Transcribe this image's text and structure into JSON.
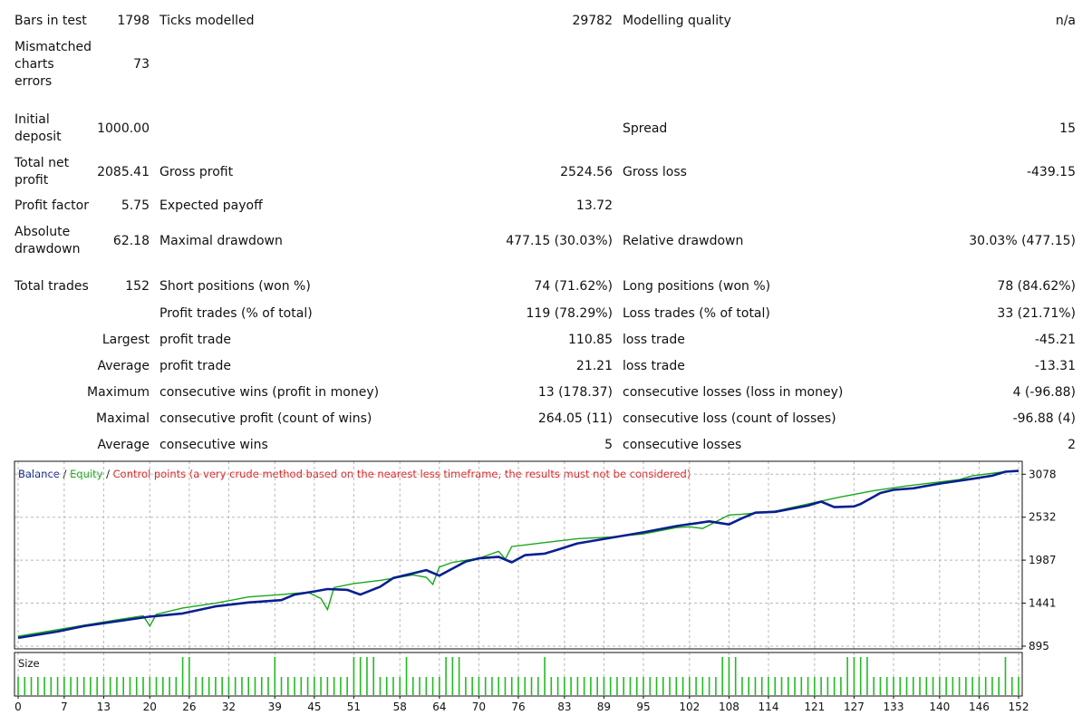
{
  "report": {
    "bars_in_test": {
      "label": "Bars in test",
      "value": "1798"
    },
    "ticks_modelled": {
      "label": "Ticks modelled",
      "value": "29782"
    },
    "modelling_quality": {
      "label": "Modelling quality",
      "value": "n/a"
    },
    "mismatched": {
      "label_lines": [
        "Mismatched",
        "charts",
        "errors"
      ],
      "value": "73"
    },
    "initial_deposit": {
      "label_lines": [
        "Initial",
        "deposit"
      ],
      "value": "1000.00"
    },
    "spread": {
      "label": "Spread",
      "value": "15"
    },
    "total_net_profit": {
      "label_lines": [
        "Total net",
        "profit"
      ],
      "value": "2085.41"
    },
    "gross_profit": {
      "label": "Gross profit",
      "value": "2524.56"
    },
    "gross_loss": {
      "label": "Gross loss",
      "value": "-439.15"
    },
    "profit_factor": {
      "label": "Profit factor",
      "value": "5.75"
    },
    "expected_payoff": {
      "label": "Expected payoff",
      "value": "13.72"
    },
    "absolute_drawdown": {
      "label_lines": [
        "Absolute",
        "drawdown"
      ],
      "value": "62.18"
    },
    "maximal_drawdown": {
      "label": "Maximal drawdown",
      "value": "477.15 (30.03%)"
    },
    "relative_drawdown": {
      "label": "Relative drawdown",
      "value": "30.03% (477.15)"
    },
    "total_trades": {
      "label": "Total trades",
      "value": "152"
    },
    "short_positions": {
      "label": "Short positions (won %)",
      "value": "74 (71.62%)"
    },
    "long_positions": {
      "label": "Long positions (won %)",
      "value": "78 (84.62%)"
    },
    "profit_trades": {
      "label": "Profit trades (% of total)",
      "value": "119 (78.29%)"
    },
    "loss_trades": {
      "label": "Loss trades (% of total)",
      "value": "33 (21.71%)"
    },
    "largest": {
      "prefix": "Largest",
      "profit_label": "profit trade",
      "profit_value": "110.85",
      "loss_label": "loss trade",
      "loss_value": "-45.21"
    },
    "average": {
      "prefix": "Average",
      "profit_label": "profit trade",
      "profit_value": "21.21",
      "loss_label": "loss trade",
      "loss_value": "-13.31"
    },
    "maximum": {
      "prefix": "Maximum",
      "wins_label": "consecutive wins (profit in money)",
      "wins_value": "13 (178.37)",
      "losses_label": "consecutive losses (loss in money)",
      "losses_value": "4 (-96.88)"
    },
    "maximal": {
      "prefix": "Maximal",
      "profit_label": "consecutive profit (count of wins)",
      "profit_value": "264.05 (11)",
      "loss_label": "consecutive loss (count of losses)",
      "loss_value": "-96.88 (4)"
    },
    "average_consecutive": {
      "prefix": "Average",
      "wins_label": "consecutive wins",
      "wins_value": "5",
      "losses_label": "consecutive losses",
      "losses_value": "2"
    }
  },
  "colors": {
    "balance": "#0a1f8f",
    "equity": "#18a818",
    "control": "#e02020",
    "size": "#22bb22",
    "grid": "#b8b8b8"
  },
  "chart_data": {
    "type": "line",
    "legend": {
      "balance": "Balance",
      "sep1": " / ",
      "equity": "Equity",
      "sep2": " / ",
      "control": "Control points (a very crude method based on the nearest less timeframe, the results must not be considered)"
    },
    "ylim": [
      895,
      3208
    ],
    "y_ticks": [
      3078,
      2532,
      1987,
      1441,
      895
    ],
    "xlim": [
      0,
      152
    ],
    "x_ticks": [
      0,
      7,
      13,
      20,
      26,
      32,
      39,
      45,
      51,
      58,
      64,
      70,
      76,
      83,
      89,
      95,
      102,
      108,
      114,
      121,
      127,
      133,
      140,
      146,
      152
    ],
    "series": [
      {
        "name": "Balance",
        "x": [
          0,
          6,
          10,
          15,
          20,
          25,
          30,
          35,
          40,
          42,
          45,
          47,
          50,
          52,
          55,
          57,
          60,
          62,
          64,
          66,
          68,
          70,
          73,
          75,
          77,
          80,
          82,
          85,
          90,
          95,
          100,
          105,
          108,
          110,
          112,
          115,
          120,
          122,
          124,
          127,
          128,
          131,
          133,
          136,
          140,
          145,
          148,
          150,
          152
        ],
        "values": [
          1000,
          1080,
          1150,
          1210,
          1270,
          1310,
          1400,
          1450,
          1480,
          1550,
          1590,
          1620,
          1610,
          1550,
          1650,
          1760,
          1820,
          1860,
          1790,
          1880,
          1970,
          2010,
          2030,
          1960,
          2050,
          2070,
          2120,
          2200,
          2270,
          2340,
          2420,
          2480,
          2440,
          2520,
          2590,
          2600,
          2680,
          2730,
          2660,
          2670,
          2700,
          2840,
          2880,
          2900,
          2960,
          3020,
          3060,
          3110,
          3120
        ]
      },
      {
        "name": "Equity",
        "x": [
          0,
          10,
          15,
          19,
          20,
          21,
          25,
          30,
          35,
          40,
          44,
          46,
          47,
          48,
          51,
          55,
          60,
          62,
          63,
          64,
          66,
          70,
          73,
          74,
          75,
          80,
          85,
          90,
          95,
          100,
          102,
          104,
          108,
          110,
          115,
          120,
          125,
          130,
          135,
          140,
          143,
          145,
          150,
          152
        ],
        "values": [
          1020,
          1160,
          1230,
          1280,
          1150,
          1300,
          1380,
          1440,
          1520,
          1550,
          1580,
          1500,
          1360,
          1640,
          1690,
          1730,
          1800,
          1770,
          1680,
          1900,
          1960,
          2010,
          2100,
          2000,
          2160,
          2210,
          2260,
          2280,
          2320,
          2400,
          2410,
          2390,
          2560,
          2570,
          2610,
          2700,
          2790,
          2870,
          2930,
          2980,
          3010,
          3060,
          3110,
          3120
        ]
      }
    ],
    "volume": {
      "label": "Size",
      "x_ticks": [
        0,
        7,
        13,
        20,
        26,
        32,
        39,
        45,
        51,
        58,
        64,
        70,
        76,
        83,
        89,
        95,
        102,
        108,
        114,
        121,
        127,
        133,
        140,
        146,
        152
      ],
      "base": 1,
      "large": 2,
      "large_trades": [
        25,
        26,
        39,
        51,
        52,
        53,
        54,
        59,
        65,
        66,
        67,
        80,
        107,
        108,
        109,
        126,
        127,
        128,
        129,
        150
      ]
    }
  }
}
